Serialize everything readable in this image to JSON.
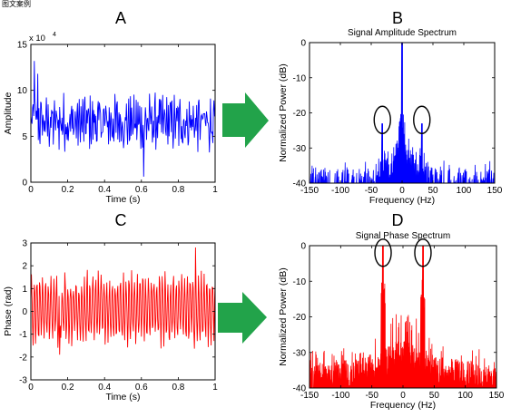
{
  "header_fragment": "图文案例",
  "colors": {
    "blue": "#0000ff",
    "red": "#ff0000",
    "arrow": "#22a34a",
    "circle": "#000000"
  },
  "chart_data": [
    {
      "id": "A",
      "panel_label": "A",
      "type": "line",
      "title": "",
      "xlabel": "Time (s)",
      "ylabel": "Amplitude",
      "multiplier": "x 10",
      "multiplier_exp": "4",
      "xlim": [
        0,
        1
      ],
      "ylim": [
        0,
        15
      ],
      "xticks": [
        0,
        0.2,
        0.4,
        0.6,
        0.8,
        1
      ],
      "xtick_labels": [
        "0",
        "0.2",
        "0.4",
        "0.6",
        "0.8",
        "1"
      ],
      "yticks": [
        0,
        5,
        10,
        15
      ],
      "ytick_labels": [
        "0",
        "5",
        "10",
        "15"
      ],
      "series": [
        {
          "color": "#0000ff",
          "description_values": "noisy time-domain signal, mean about 6.5 (x10^4), range about 0.5 to 13.5, dense oscillation",
          "mean": 6.5,
          "spread": 2.4,
          "min": 0.5,
          "max": 13.5
        }
      ]
    },
    {
      "id": "B",
      "panel_label": "B",
      "type": "line",
      "title": "Signal Amplitude Spectrum",
      "xlabel": "Frequency (Hz)",
      "ylabel": "Normalized Power (dB)",
      "xlim": [
        -150,
        150
      ],
      "ylim": [
        -40,
        0
      ],
      "xticks": [
        -150,
        -100,
        -50,
        0,
        50,
        100,
        150
      ],
      "xtick_labels": [
        "-150",
        "-100",
        "-50",
        "0",
        "50",
        "100",
        "150"
      ],
      "yticks": [
        -40,
        -30,
        -20,
        -10,
        0
      ],
      "ytick_labels": [
        "-40",
        "-30",
        "-20",
        "-10",
        "0"
      ],
      "series": [
        {
          "color": "#0000ff",
          "peaks": [
            {
              "x": 0,
              "y": 0
            },
            {
              "x": -32,
              "y": -23
            },
            {
              "x": 32,
              "y": -23
            }
          ],
          "floor": -38
        }
      ],
      "annotations": [
        {
          "type": "ellipse",
          "x": -32,
          "y": -22
        },
        {
          "type": "ellipse",
          "x": 32,
          "y": -22
        }
      ]
    },
    {
      "id": "C",
      "panel_label": "C",
      "type": "line",
      "title": "",
      "xlabel": "Time (s)",
      "ylabel": "Phase (rad)",
      "xlim": [
        0,
        1
      ],
      "ylim": [
        -3,
        3
      ],
      "xticks": [
        0,
        0.2,
        0.4,
        0.6,
        0.8,
        1
      ],
      "xtick_labels": [
        "0",
        "0.2",
        "0.4",
        "0.6",
        "0.8",
        "1"
      ],
      "yticks": [
        -3,
        -2,
        -1,
        0,
        1,
        2,
        3
      ],
      "ytick_labels": [
        "-3",
        "-2",
        "-1",
        "0",
        "1",
        "2",
        "3"
      ],
      "series": [
        {
          "color": "#ff0000",
          "description_values": "oscillating phase signal around 0, range about -2 to 2.8",
          "mean": 0.1,
          "amplitude": 1.3,
          "min": -2.0,
          "max": 2.8
        }
      ]
    },
    {
      "id": "D",
      "panel_label": "D",
      "type": "line",
      "title": "Signal Phase Spectrum",
      "xlabel": "Frequency (Hz)",
      "ylabel": "Normalized Power (dB)",
      "xlim": [
        -150,
        150
      ],
      "ylim": [
        -40,
        0
      ],
      "xticks": [
        -150,
        -100,
        -50,
        0,
        50,
        100,
        150
      ],
      "xtick_labels": [
        "-150",
        "-100",
        "-50",
        "0",
        "50",
        "100",
        "150"
      ],
      "yticks": [
        -40,
        -30,
        -20,
        -10,
        0
      ],
      "ytick_labels": [
        "-40",
        "-30",
        "-20",
        "-10",
        "0"
      ],
      "series": [
        {
          "color": "#ff0000",
          "peaks": [
            {
              "x": -32,
              "y": 0
            },
            {
              "x": 32,
              "y": 0
            }
          ],
          "floor": -35
        }
      ],
      "annotations": [
        {
          "type": "ellipse",
          "x": -32,
          "y": -2
        },
        {
          "type": "ellipse",
          "x": 32,
          "y": -2
        }
      ]
    }
  ]
}
